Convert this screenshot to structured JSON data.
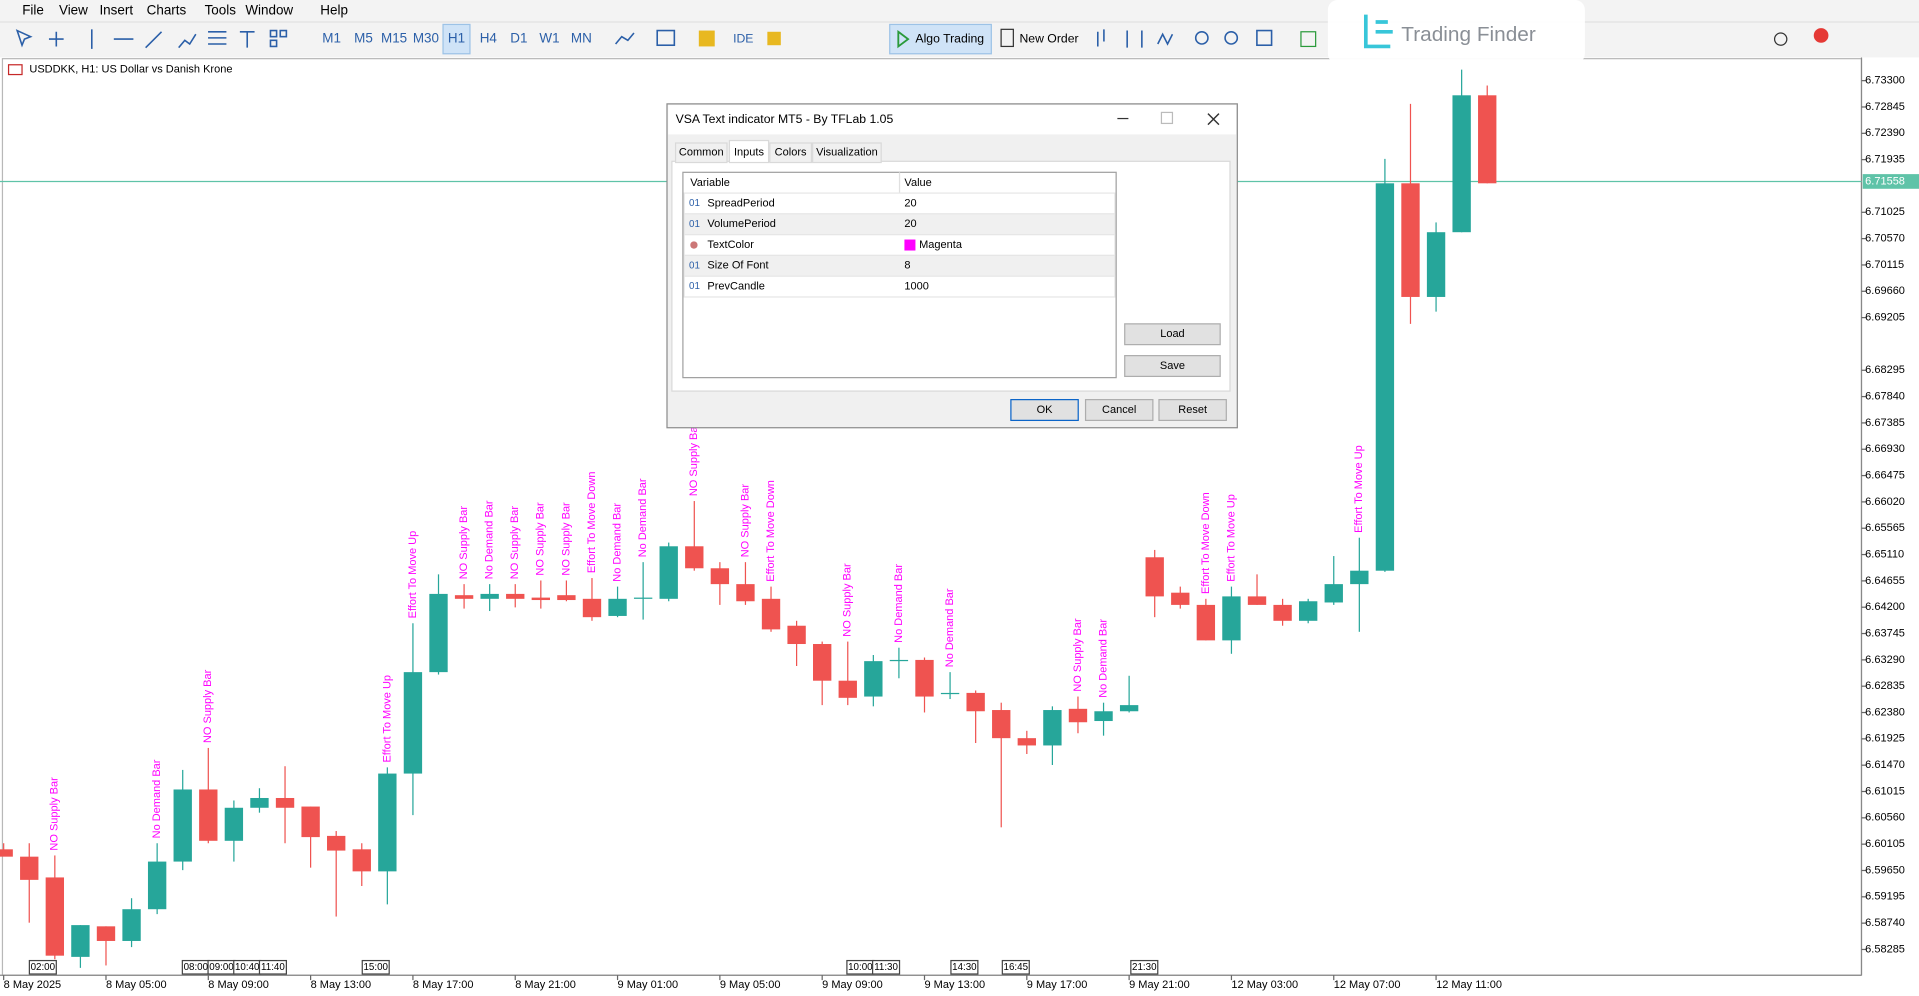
{
  "menu": [
    "File",
    "View",
    "Insert",
    "Charts",
    "Tools",
    "Window",
    "Help"
  ],
  "toolbar": {
    "timeframes": [
      "M1",
      "M5",
      "M15",
      "M30",
      "H1",
      "H4",
      "D1",
      "W1",
      "MN"
    ],
    "active_timeframe": "H1",
    "ide": "IDE",
    "algo_trading": "Algo Trading",
    "new_order": "New Order"
  },
  "logo": "Trading Finder",
  "chart_data": {
    "type": "candlestick",
    "symbol_info": "USDDKK, H1:  US Dollar vs Danish Krone",
    "up_color": "#26a69a",
    "down_color": "#ef5350",
    "signal_color": "#ff00ff",
    "current_price_color": "#5fc3a8",
    "current_price": 6.71558,
    "ylim": [
      6.5784,
      6.73659
    ],
    "yticks": [
      {
        "value": 6.733,
        "label": "6.73300"
      },
      6.72845,
      {
        "value": 6.7239,
        "label": "6.72390"
      },
      6.71935,
      6.71025,
      {
        "value": 6.7057,
        "label": "6.70570"
      },
      6.70115,
      {
        "value": 6.6966,
        "label": "6.69660"
      },
      6.69205,
      6.68295,
      {
        "value": 6.6784,
        "label": "6.67840"
      },
      6.67385,
      {
        "value": 6.6693,
        "label": "6.66930"
      },
      6.66475,
      {
        "value": 6.6602,
        "label": "6.66020"
      },
      6.65565,
      {
        "value": 6.6511,
        "label": "6.65110"
      },
      6.64655,
      {
        "value": 6.642,
        "label": "6.64200"
      },
      6.63745,
      {
        "value": 6.6329,
        "label": "6.63290"
      },
      6.62835,
      {
        "value": 6.6238,
        "label": "6.62380"
      },
      6.61925,
      {
        "value": 6.6147,
        "label": "6.61470"
      },
      6.61015,
      {
        "value": 6.6056,
        "label": "6.60560"
      },
      6.60105,
      {
        "value": 6.5965,
        "label": "6.59650"
      },
      6.59195,
      {
        "value": 6.5874,
        "label": "6.58740"
      },
      6.58285
    ],
    "open": [
      6.60016,
      6.59889,
      6.5953,
      6.58157,
      6.58685,
      6.58432,
      6.58981,
      6.59804,
      6.6105,
      6.60163,
      6.60734,
      6.60903,
      6.60755,
      6.60248,
      6.60016,
      6.59635,
      6.61325,
      6.63078,
      6.64408,
      6.64345,
      6.6443,
      6.64366,
      6.64408,
      6.64345,
      6.64049,
      6.64345,
      6.64345,
      6.65253,
      6.64873,
      6.64599,
      6.64345,
      6.6388,
      6.63564,
      6.6293,
      6.62656,
      6.63268,
      6.63289,
      6.62698,
      6.62719,
      6.62423,
      6.61937,
      6.61811,
      6.62444,
      6.62233,
      6.62402,
      6.65063,
      6.64451,
      6.6424,
      6.63627,
      6.64387,
      6.6424,
      6.63965,
      6.64282,
      6.64599,
      6.64831,
      6.71526,
      6.69562,
      6.70681,
      6.73047
    ],
    "high": [
      6.60121,
      6.60121,
      6.5991,
      6.58706,
      6.58685,
      6.59171,
      6.60121,
      6.61388,
      6.61768,
      6.6086,
      6.61072,
      6.61452,
      6.60755,
      6.60332,
      6.60121,
      6.61431,
      6.63923,
      6.64768,
      6.64599,
      6.64599,
      6.64599,
      6.64662,
      6.64662,
      6.64704,
      6.64556,
      6.64979,
      6.65317,
      6.66035,
      6.64979,
      6.64979,
      6.64556,
      6.63965,
      6.63606,
      6.63606,
      6.63374,
      6.635,
      6.63331,
      6.63078,
      6.62761,
      6.6255,
      6.62064,
      6.62487,
      6.62656,
      6.6255,
      6.63015,
      6.6519,
      6.64556,
      6.64345,
      6.64556,
      6.64768,
      6.64345,
      6.64345,
      6.65084,
      6.65401,
      6.71948,
      6.72899,
      6.7085,
      6.7349,
      6.73216
    ],
    "low": [
      6.5991,
      6.58748,
      6.58115,
      6.57967,
      6.58009,
      6.58326,
      6.58896,
      6.59656,
      6.60121,
      6.59804,
      6.60649,
      6.60121,
      6.59699,
      6.58854,
      6.59382,
      6.59065,
      6.60607,
      6.63036,
      6.64176,
      6.64134,
      6.64197,
      6.64176,
      6.64303,
      6.63965,
      6.64028,
      6.63986,
      6.64303,
      6.64831,
      6.6424,
      6.6424,
      6.63775,
      6.63184,
      6.62508,
      6.62508,
      6.62487,
      6.62972,
      6.62381,
      6.62613,
      6.61853,
      6.60396,
      6.61663,
      6.61473,
      6.62022,
      6.6198,
      6.62381,
      6.64028,
      6.64176,
      6.63627,
      6.63395,
      6.6424,
      6.6388,
      6.63923,
      6.6424,
      6.63775,
      6.6481,
      6.69097,
      6.69308,
      6.70681,
      6.71526
    ],
    "close": [
      6.59889,
      6.59488,
      6.58178,
      6.58706,
      6.58432,
      6.58981,
      6.59804,
      6.6105,
      6.60163,
      6.60734,
      6.60903,
      6.60734,
      6.60227,
      6.59994,
      6.59635,
      6.61325,
      6.63078,
      6.6443,
      6.64345,
      6.6443,
      6.64345,
      6.64324,
      6.64324,
      6.64028,
      6.64345,
      6.64366,
      6.65253,
      6.64873,
      6.64599,
      6.64303,
      6.63817,
      6.63564,
      6.6293,
      6.62634,
      6.63268,
      6.63289,
      6.62656,
      6.62719,
      6.62402,
      6.61937,
      6.61811,
      6.62423,
      6.62212,
      6.62402,
      6.62508,
      6.64387,
      6.6424,
      6.63627,
      6.64387,
      6.6424,
      6.63965,
      6.64303,
      6.64599,
      6.64831,
      6.71526,
      6.69562,
      6.70681,
      6.73047,
      6.71526
    ],
    "signals": [
      null,
      null,
      "NO Supply Bar",
      null,
      null,
      null,
      "No Demand Bar",
      null,
      "NO Supply Bar",
      null,
      null,
      null,
      null,
      null,
      null,
      "Effort To Move Up",
      "Effort To Move Up",
      null,
      "NO Supply Bar",
      "No Demand Bar",
      "NO Supply Bar",
      "NO Supply Bar",
      "NO Supply Bar",
      "Effort To Move Down",
      "No Demand Bar",
      "No Demand Bar",
      null,
      "NO Supply Bar",
      null,
      "NO Supply Bar",
      "Effort To Move Down",
      null,
      null,
      "NO Supply Bar",
      null,
      "No Demand Bar",
      null,
      "No Demand Bar",
      null,
      null,
      null,
      null,
      "NO Supply Bar",
      "No Demand Bar",
      null,
      null,
      null,
      "Effort To Move Down",
      "Effort To Move Up",
      null,
      null,
      null,
      null,
      "Effort To Move Up",
      null,
      null,
      null,
      null,
      null
    ],
    "x_labels": [
      "8 May 2025",
      null,
      null,
      null,
      "8 May 05:00",
      null,
      null,
      null,
      "8 May 09:00",
      null,
      null,
      null,
      "8 May 13:00",
      null,
      null,
      null,
      "8 May 17:00",
      null,
      null,
      null,
      "8 May 21:00",
      null,
      null,
      null,
      "9 May 01:00",
      null,
      null,
      null,
      "9 May 05:00",
      null,
      null,
      null,
      "9 May 09:00",
      null,
      null,
      null,
      "9 May 13:00",
      null,
      null,
      null,
      "9 May 17:00",
      null,
      null,
      null,
      "9 May 21:00",
      null,
      null,
      null,
      "12 May 03:00",
      null,
      null,
      null,
      "12 May 07:00",
      null,
      null,
      null,
      "12 May 11:00",
      null,
      null
    ],
    "markers": [
      "02:00",
      "08:00",
      "09:00",
      "10:40",
      "11:40",
      "15:00",
      "10:00",
      "11:30",
      "14:30",
      "16:45",
      "21:30"
    ]
  },
  "dialog": {
    "title": "VSA Text indicator MT5 - By TFLab 1.05",
    "tabs": [
      "Common",
      "Inputs",
      "Colors",
      "Visualization"
    ],
    "columns": [
      "Variable",
      "Value"
    ],
    "rows": [
      {
        "icon": "01",
        "variable": "SpreadPeriod",
        "value": 20
      },
      {
        "icon": "01",
        "variable": "VolumePeriod",
        "value": 20
      },
      {
        "icon": null,
        "variable": "TextColor",
        "value": "Magenta"
      },
      {
        "icon": "01",
        "variable": "Size Of Font",
        "value": 8
      },
      {
        "icon": "01",
        "variable": "PrevCandle",
        "value": 1000
      }
    ],
    "buttons": {
      "load": "Load",
      "save": "Save",
      "ok": "OK",
      "cancel": "Cancel",
      "reset": "Reset"
    }
  }
}
